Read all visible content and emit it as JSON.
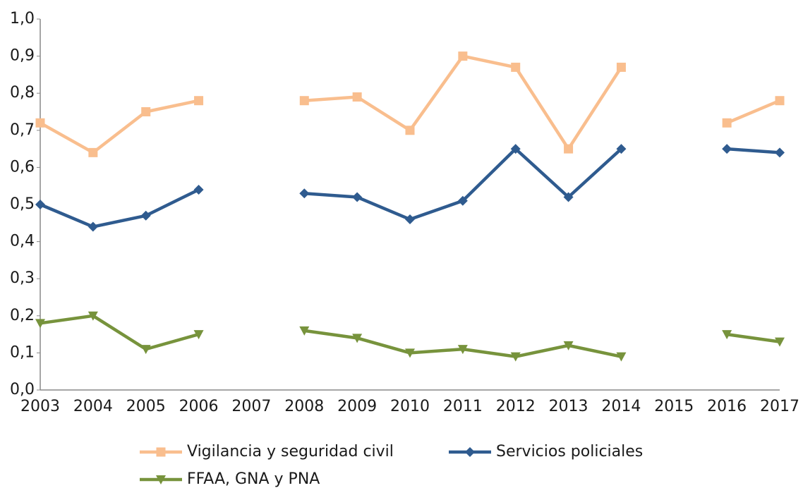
{
  "chart_data": {
    "type": "line",
    "categories": [
      "2003",
      "2004",
      "2005",
      "2006",
      "2007",
      "2008",
      "2009",
      "2010",
      "2011",
      "2012",
      "2013",
      "2014",
      "2015",
      "2016",
      "2017"
    ],
    "series": [
      {
        "name": "Vigilancia y seguridad civil",
        "color": "#f9be8e",
        "marker": "square",
        "values": [
          0.72,
          0.64,
          0.75,
          0.78,
          null,
          0.78,
          0.79,
          0.7,
          0.9,
          0.87,
          0.65,
          0.87,
          null,
          0.72,
          0.78
        ]
      },
      {
        "name": "Servicios policiales",
        "color": "#2f5b8f",
        "marker": "diamond",
        "values": [
          0.5,
          0.44,
          0.47,
          0.54,
          null,
          0.53,
          0.52,
          0.46,
          0.51,
          0.65,
          0.52,
          0.65,
          null,
          0.65,
          0.64
        ]
      },
      {
        "name": "FFAA, GNA y PNA",
        "color": "#77933c",
        "marker": "triangle-down",
        "values": [
          0.18,
          0.2,
          0.11,
          0.15,
          null,
          0.16,
          0.14,
          0.1,
          0.11,
          0.09,
          0.12,
          0.09,
          null,
          0.15,
          0.13
        ]
      }
    ],
    "ylim": [
      0,
      1
    ],
    "yticks": [
      {
        "value": 0,
        "label": "0,0"
      },
      {
        "value": 0.1,
        "label": "0,1"
      },
      {
        "value": 0.2,
        "label": "0,2"
      },
      {
        "value": 0.3,
        "label": "0,3"
      },
      {
        "value": 0.4,
        "label": "0,4"
      },
      {
        "value": 0.5,
        "label": "0,5"
      },
      {
        "value": 0.6,
        "label": "0,6"
      },
      {
        "value": 0.7,
        "label": "0,7"
      },
      {
        "value": 0.8,
        "label": "0,8"
      },
      {
        "value": 0.9,
        "label": "0,9"
      },
      {
        "value": 1,
        "label": "1,0"
      }
    ],
    "grid": false,
    "legend": "bottom"
  }
}
